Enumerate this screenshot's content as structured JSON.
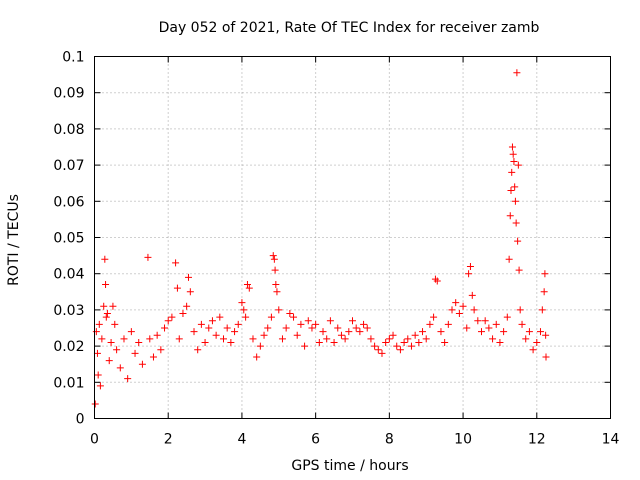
{
  "chart_data": {
    "type": "scatter",
    "title": "Day 052 of 2021, Rate Of TEC Index for receiver zamb",
    "xlabel": "GPS time / hours",
    "ylabel": "ROTI / TECUs",
    "xlim": [
      0,
      14
    ],
    "ylim": [
      0,
      0.1
    ],
    "x_ticks": [
      0,
      2,
      4,
      6,
      8,
      10,
      12,
      14
    ],
    "x_tick_labels": [
      "0",
      "2",
      "4",
      "6",
      "8",
      "10",
      "12",
      "14"
    ],
    "y_ticks": [
      0,
      0.01,
      0.02,
      0.03,
      0.04,
      0.05,
      0.06,
      0.07,
      0.08,
      0.09,
      0.1
    ],
    "y_tick_labels": [
      "0",
      "0.01",
      "0.02",
      "0.03",
      "0.04",
      "0.05",
      "0.06",
      "0.07",
      "0.08",
      "0.09",
      "0.1"
    ],
    "grid": true,
    "marker": "+",
    "color": "#ff0000",
    "series": [
      {
        "name": "ROTI",
        "points": [
          [
            0.02,
            0.004
          ],
          [
            0.05,
            0.024
          ],
          [
            0.08,
            0.018
          ],
          [
            0.1,
            0.012
          ],
          [
            0.13,
            0.026
          ],
          [
            0.16,
            0.009
          ],
          [
            0.2,
            0.022
          ],
          [
            0.25,
            0.031
          ],
          [
            0.28,
            0.044
          ],
          [
            0.3,
            0.037
          ],
          [
            0.32,
            0.028
          ],
          [
            0.35,
            0.029
          ],
          [
            0.4,
            0.016
          ],
          [
            0.45,
            0.021
          ],
          [
            0.5,
            0.031
          ],
          [
            0.55,
            0.026
          ],
          [
            0.6,
            0.019
          ],
          [
            0.7,
            0.014
          ],
          [
            0.8,
            0.022
          ],
          [
            0.9,
            0.011
          ],
          [
            1.0,
            0.024
          ],
          [
            1.1,
            0.018
          ],
          [
            1.2,
            0.021
          ],
          [
            1.3,
            0.015
          ],
          [
            1.45,
            0.0445
          ],
          [
            1.5,
            0.022
          ],
          [
            1.6,
            0.017
          ],
          [
            1.7,
            0.023
          ],
          [
            1.8,
            0.019
          ],
          [
            1.9,
            0.025
          ],
          [
            2.0,
            0.027
          ],
          [
            2.1,
            0.028
          ],
          [
            2.2,
            0.043
          ],
          [
            2.25,
            0.036
          ],
          [
            2.3,
            0.022
          ],
          [
            2.4,
            0.029
          ],
          [
            2.5,
            0.031
          ],
          [
            2.55,
            0.039
          ],
          [
            2.6,
            0.035
          ],
          [
            2.7,
            0.024
          ],
          [
            2.8,
            0.019
          ],
          [
            2.9,
            0.026
          ],
          [
            3.0,
            0.021
          ],
          [
            3.1,
            0.025
          ],
          [
            3.2,
            0.027
          ],
          [
            3.3,
            0.023
          ],
          [
            3.4,
            0.028
          ],
          [
            3.5,
            0.022
          ],
          [
            3.6,
            0.025
          ],
          [
            3.7,
            0.021
          ],
          [
            3.8,
            0.024
          ],
          [
            3.9,
            0.026
          ],
          [
            4.0,
            0.032
          ],
          [
            4.05,
            0.03
          ],
          [
            4.1,
            0.028
          ],
          [
            4.15,
            0.037
          ],
          [
            4.2,
            0.036
          ],
          [
            4.3,
            0.022
          ],
          [
            4.4,
            0.017
          ],
          [
            4.5,
            0.02
          ],
          [
            4.6,
            0.023
          ],
          [
            4.7,
            0.025
          ],
          [
            4.8,
            0.028
          ],
          [
            4.85,
            0.045
          ],
          [
            4.88,
            0.044
          ],
          [
            4.9,
            0.041
          ],
          [
            4.92,
            0.037
          ],
          [
            4.95,
            0.035
          ],
          [
            5.0,
            0.03
          ],
          [
            5.1,
            0.022
          ],
          [
            5.2,
            0.025
          ],
          [
            5.3,
            0.029
          ],
          [
            5.4,
            0.028
          ],
          [
            5.5,
            0.023
          ],
          [
            5.6,
            0.026
          ],
          [
            5.7,
            0.02
          ],
          [
            5.8,
            0.027
          ],
          [
            5.9,
            0.025
          ],
          [
            6.0,
            0.026
          ],
          [
            6.1,
            0.021
          ],
          [
            6.2,
            0.024
          ],
          [
            6.3,
            0.022
          ],
          [
            6.4,
            0.027
          ],
          [
            6.5,
            0.021
          ],
          [
            6.6,
            0.025
          ],
          [
            6.7,
            0.023
          ],
          [
            6.8,
            0.022
          ],
          [
            6.9,
            0.024
          ],
          [
            7.0,
            0.027
          ],
          [
            7.1,
            0.025
          ],
          [
            7.2,
            0.024
          ],
          [
            7.3,
            0.026
          ],
          [
            7.4,
            0.025
          ],
          [
            7.5,
            0.022
          ],
          [
            7.6,
            0.02
          ],
          [
            7.7,
            0.019
          ],
          [
            7.8,
            0.018
          ],
          [
            7.9,
            0.021
          ],
          [
            8.0,
            0.022
          ],
          [
            8.1,
            0.023
          ],
          [
            8.2,
            0.02
          ],
          [
            8.3,
            0.019
          ],
          [
            8.4,
            0.021
          ],
          [
            8.5,
            0.022
          ],
          [
            8.6,
            0.02
          ],
          [
            8.7,
            0.023
          ],
          [
            8.8,
            0.021
          ],
          [
            8.9,
            0.024
          ],
          [
            9.0,
            0.022
          ],
          [
            9.1,
            0.026
          ],
          [
            9.2,
            0.028
          ],
          [
            9.25,
            0.0385
          ],
          [
            9.3,
            0.038
          ],
          [
            9.4,
            0.024
          ],
          [
            9.5,
            0.021
          ],
          [
            9.6,
            0.026
          ],
          [
            9.7,
            0.03
          ],
          [
            9.8,
            0.032
          ],
          [
            9.9,
            0.029
          ],
          [
            10.0,
            0.031
          ],
          [
            10.1,
            0.025
          ],
          [
            10.15,
            0.04
          ],
          [
            10.2,
            0.042
          ],
          [
            10.25,
            0.034
          ],
          [
            10.3,
            0.03
          ],
          [
            10.4,
            0.027
          ],
          [
            10.5,
            0.024
          ],
          [
            10.6,
            0.027
          ],
          [
            10.7,
            0.025
          ],
          [
            10.8,
            0.022
          ],
          [
            10.9,
            0.026
          ],
          [
            11.0,
            0.021
          ],
          [
            11.1,
            0.024
          ],
          [
            11.2,
            0.028
          ],
          [
            11.25,
            0.044
          ],
          [
            11.28,
            0.056
          ],
          [
            11.3,
            0.063
          ],
          [
            11.32,
            0.068
          ],
          [
            11.34,
            0.075
          ],
          [
            11.36,
            0.073
          ],
          [
            11.38,
            0.071
          ],
          [
            11.4,
            0.064
          ],
          [
            11.42,
            0.06
          ],
          [
            11.44,
            0.054
          ],
          [
            11.46,
            0.0955
          ],
          [
            11.48,
            0.049
          ],
          [
            11.5,
            0.07
          ],
          [
            11.52,
            0.041
          ],
          [
            11.55,
            0.03
          ],
          [
            11.6,
            0.026
          ],
          [
            11.7,
            0.022
          ],
          [
            11.8,
            0.024
          ],
          [
            11.9,
            0.019
          ],
          [
            12.0,
            0.021
          ],
          [
            12.1,
            0.024
          ],
          [
            12.15,
            0.03
          ],
          [
            12.2,
            0.035
          ],
          [
            12.22,
            0.04
          ],
          [
            12.24,
            0.023
          ],
          [
            12.25,
            0.017
          ]
        ]
      }
    ]
  }
}
